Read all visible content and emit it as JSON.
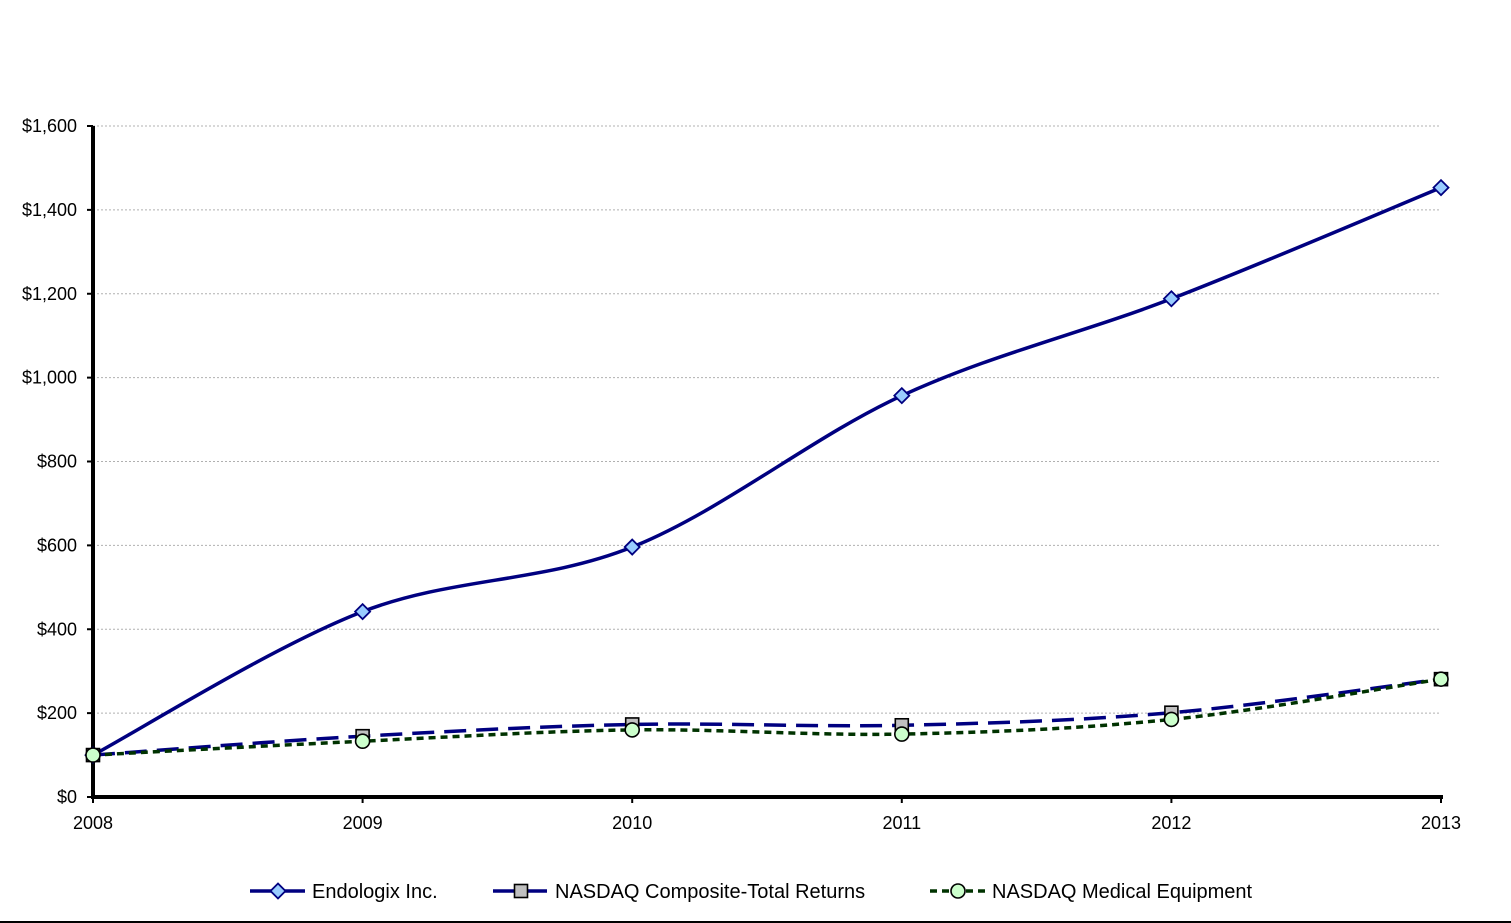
{
  "chart_data": {
    "type": "line",
    "title": "",
    "xlabel": "",
    "ylabel": "",
    "x": [
      "2008",
      "2009",
      "2010",
      "2011",
      "2012",
      "2013"
    ],
    "ylim": [
      0,
      1600
    ],
    "yticks": [
      0,
      200,
      400,
      600,
      800,
      1000,
      1200,
      1400,
      1600
    ],
    "ytick_labels": [
      "$0",
      "$200",
      "$400",
      "$600",
      "$800",
      "$1,000",
      "$1,200",
      "$1,400",
      "$1,600"
    ],
    "grid": true,
    "legend_position": "bottom",
    "series": [
      {
        "name": "Endologix Inc.",
        "values": [
          100,
          442,
          596,
          957,
          1188,
          1453
        ],
        "color": "#000080",
        "marker": "diamond",
        "marker_fill": "#99ccff",
        "line_style": "solid"
      },
      {
        "name": "NASDAQ Composite-Total Returns",
        "values": [
          100,
          145,
          173,
          171,
          201,
          281
        ],
        "color": "#000080",
        "marker": "square",
        "marker_fill": "#c0c0c0",
        "line_style": "dashed"
      },
      {
        "name": "NASDAQ Medical Equipment",
        "values": [
          100,
          133,
          160,
          150,
          185,
          281
        ],
        "color": "#003300",
        "marker": "circle",
        "marker_fill": "#ccffcc",
        "line_style": "dotted"
      }
    ]
  }
}
